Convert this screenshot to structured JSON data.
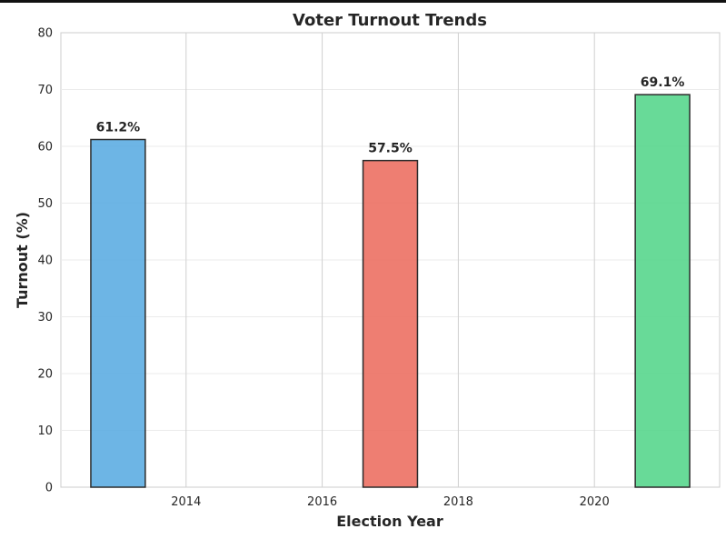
{
  "chart_data": {
    "type": "bar",
    "title": "Voter Turnout Trends",
    "xlabel": "Election Year",
    "ylabel": "Turnout (%)",
    "x": [
      2013,
      2017,
      2021
    ],
    "values": [
      61.2,
      57.5,
      69.1
    ],
    "data_labels": [
      "61.2%",
      "57.5%",
      "69.1%"
    ],
    "colors": [
      "#5dade2",
      "#ec7063",
      "#58d68d"
    ],
    "bar_width": 0.8,
    "xlim": [
      2012.16,
      2021.84
    ],
    "ylim": [
      0,
      80
    ],
    "xticks": [
      2014,
      2016,
      2018,
      2020
    ],
    "yticks": [
      0,
      10,
      20,
      30,
      40,
      50,
      60,
      70,
      80
    ],
    "grid": true,
    "legend": "none"
  }
}
